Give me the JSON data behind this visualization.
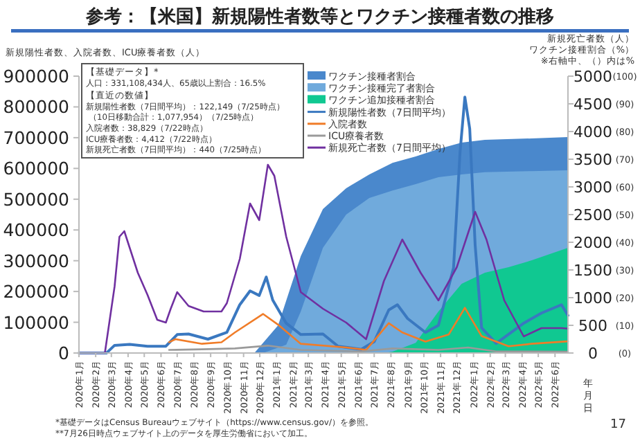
{
  "chart_data": {
    "type": "line",
    "title": "参考：【米国】新規陽性者数等とワクチン接種者数の推移",
    "ylabel": "新規陽性者数、入院者数、ICU療養者数（人）",
    "y2label": "新規死亡者数（人）",
    "y3label": "ワクチン接種割合（%）",
    "xlabel": "年月日",
    "xlim": [
      "2020-01-01",
      "2022-06-25"
    ],
    "xticks": [
      {
        "value": "2020-01-01",
        "label": "2020年1月"
      },
      {
        "value": "2020-02-01",
        "label": "2020年2月"
      },
      {
        "value": "2020-03-01",
        "label": "2020年3月"
      },
      {
        "value": "2020-04-01",
        "label": "2020年4月"
      },
      {
        "value": "2020-05-01",
        "label": "2020年5月"
      },
      {
        "value": "2020-06-01",
        "label": "2020年6月"
      },
      {
        "value": "2020-07-01",
        "label": "2020年7月"
      },
      {
        "value": "2020-08-01",
        "label": "2020年8月"
      },
      {
        "value": "2020-09-01",
        "label": "2020年9月"
      },
      {
        "value": "2020-10-01",
        "label": "2020年10月"
      },
      {
        "value": "2020-11-01",
        "label": "2020年11月"
      },
      {
        "value": "2020-12-01",
        "label": "2020年12月"
      },
      {
        "value": "2021-01-01",
        "label": "2021年1月"
      },
      {
        "value": "2021-02-01",
        "label": "2021年2月"
      },
      {
        "value": "2021-03-01",
        "label": "2021年3月"
      },
      {
        "value": "2021-04-01",
        "label": "2021年4月"
      },
      {
        "value": "2021-05-01",
        "label": "2021年5月"
      },
      {
        "value": "2021-06-01",
        "label": "2021年6月"
      },
      {
        "value": "2021-07-01",
        "label": "2021年7月"
      },
      {
        "value": "2021-08-01",
        "label": "2021年8月"
      },
      {
        "value": "2021-09-01",
        "label": "2021年9月"
      },
      {
        "value": "2021-10-01",
        "label": "2021年10月"
      },
      {
        "value": "2021-11-01",
        "label": "2021年11月"
      },
      {
        "value": "2021-12-01",
        "label": "2021年12月"
      },
      {
        "value": "2022-01-01",
        "label": "2022年1月"
      },
      {
        "value": "2022-02-01",
        "label": "2022年2月"
      },
      {
        "value": "2022-03-01",
        "label": "2022年3月"
      },
      {
        "value": "2022-04-01",
        "label": "2022年4月"
      },
      {
        "value": "2022-05-01",
        "label": "2022年5月"
      },
      {
        "value": "2022-06-01",
        "label": "2022年6月"
      }
    ],
    "ylim": [
      0,
      900000
    ],
    "yticks": [
      0,
      100000,
      200000,
      300000,
      400000,
      500000,
      600000,
      700000,
      800000,
      900000
    ],
    "y2lim": [
      0,
      5000
    ],
    "y2ticks": [
      0,
      500,
      1000,
      1500,
      2000,
      2500,
      3000,
      3500,
      4000,
      4500,
      5000
    ],
    "y3lim": [
      0,
      100
    ],
    "y3ticks": [
      {
        "value": 0,
        "label": "(0)"
      },
      {
        "value": 10,
        "label": "(10)"
      },
      {
        "value": 20,
        "label": "(20)"
      },
      {
        "value": 30,
        "label": "(30)"
      },
      {
        "value": 40,
        "label": "(40)"
      },
      {
        "value": 50,
        "label": "(50)"
      },
      {
        "value": 60,
        "label": "(60)"
      },
      {
        "value": 70,
        "label": "(70)"
      },
      {
        "value": 80,
        "label": "(80)"
      },
      {
        "value": 90,
        "label": "(90)"
      },
      {
        "value": 100,
        "label": "(100)"
      }
    ],
    "grid": false,
    "legend": "top",
    "marker": "none",
    "line_style": "solid",
    "series": [
      {
        "name": "ワクチン接種者割合",
        "type": "area",
        "axis": "y3",
        "color": "#4a88cc",
        "x": [
          "2020-11-21",
          "2021-01-04",
          "2021-02-15",
          "2021-03-28",
          "2021-05-10",
          "2021-06-22",
          "2021-08-04",
          "2021-09-16",
          "2021-10-28",
          "2021-12-10",
          "2022-01-22",
          "2022-04-19",
          "2022-06-25"
        ],
        "values": [
          0,
          10,
          35,
          52,
          59.5,
          64.5,
          68.7,
          71,
          73.7,
          76,
          77,
          77.5,
          78
        ]
      },
      {
        "name": "ワクチン接種完了者割合",
        "type": "area",
        "axis": "y3",
        "color": "#70aadc",
        "x": [
          "2020-12-07",
          "2021-01-19",
          "2021-02-15",
          "2021-03-28",
          "2021-05-10",
          "2021-06-22",
          "2021-08-04",
          "2021-09-16",
          "2021-10-28",
          "2021-12-10",
          "2022-01-22",
          "2022-04-19",
          "2022-06-25"
        ],
        "values": [
          0,
          3,
          15,
          38,
          50,
          56,
          58.7,
          61,
          63.5,
          64.5,
          65.3,
          65.7,
          66
        ]
      },
      {
        "name": "ワクチン追加接種者割合",
        "type": "area",
        "axis": "y3",
        "color": "#10c891",
        "x": [
          "2021-07-19",
          "2021-08-04",
          "2021-09-16",
          "2021-10-28",
          "2021-12-10",
          "2022-01-22",
          "2022-03-07",
          "2022-04-19",
          "2022-06-25"
        ],
        "values": [
          0,
          0.5,
          3.7,
          15,
          25,
          29,
          31,
          33.5,
          38
        ]
      },
      {
        "name": "新規陽性者数（7日間平均）",
        "color": "#3a78c0",
        "x": [
          "2020-01-01",
          "2020-02-21",
          "2020-03-07",
          "2020-04-04",
          "2020-05-07",
          "2020-06-10",
          "2020-07-01",
          "2020-07-22",
          "2020-08-27",
          "2020-10-01",
          "2020-10-25",
          "2020-11-13",
          "2020-11-30",
          "2020-12-13",
          "2020-12-25",
          "2021-01-19",
          "2021-02-15",
          "2021-03-28",
          "2021-04-25",
          "2021-06-07",
          "2021-07-01",
          "2021-07-28",
          "2021-08-13",
          "2021-09-01",
          "2021-10-04",
          "2021-10-28",
          "2021-11-25",
          "2021-12-07",
          "2021-12-16",
          "2021-12-25",
          "2022-01-04",
          "2022-01-16",
          "2022-02-12",
          "2022-04-04",
          "2022-05-07",
          "2022-06-13",
          "2022-06-25"
        ],
        "values": [
          0,
          0,
          25000,
          28000,
          22000,
          22000,
          60000,
          62000,
          45000,
          67000,
          157000,
          202000,
          187000,
          247000,
          172000,
          97000,
          60000,
          62000,
          22000,
          12000,
          37000,
          140000,
          157000,
          112000,
          67000,
          90000,
          277000,
          652000,
          832000,
          729000,
          352000,
          82000,
          31000,
          97000,
          130000,
          157000,
          122000
        ]
      },
      {
        "name": "入院者数",
        "color": "#f07c28",
        "x": [
          "2020-06-16",
          "2020-06-28",
          "2020-08-16",
          "2020-09-21",
          "2020-10-16",
          "2020-12-07",
          "2021-01-04",
          "2021-02-15",
          "2021-05-10",
          "2021-06-16",
          "2021-07-28",
          "2021-08-22",
          "2021-10-04",
          "2021-11-16",
          "2021-12-16",
          "2022-01-16",
          "2022-03-07",
          "2022-04-19",
          "2022-06-25"
        ],
        "values": [
          35000,
          45000,
          30000,
          35000,
          67000,
          127000,
          92000,
          30000,
          18000,
          10000,
          97000,
          67000,
          37000,
          60000,
          147000,
          55000,
          22000,
          30000,
          38000
        ]
      },
      {
        "name": "ICU療養者数",
        "color": "#9a9a9a",
        "x": [
          "2020-06-16",
          "2020-08-16",
          "2020-10-16",
          "2020-12-16",
          "2021-02-15",
          "2021-06-07",
          "2021-08-04",
          "2021-10-28",
          "2021-12-22",
          "2022-02-12",
          "2022-06-25"
        ],
        "values": [
          10000,
          12000,
          15000,
          24000,
          10000,
          5000,
          15000,
          10000,
          18000,
          5000,
          4400
        ]
      },
      {
        "name": "新規死亡者数（7日間平均）",
        "axis": "y2",
        "color": "#7030a0",
        "x": [
          "2020-01-01",
          "2020-02-18",
          "2020-03-07",
          "2020-03-16",
          "2020-03-25",
          "2020-04-04",
          "2020-04-19",
          "2020-05-07",
          "2020-05-25",
          "2020-06-10",
          "2020-06-19",
          "2020-07-01",
          "2020-07-22",
          "2020-08-19",
          "2020-09-21",
          "2020-10-01",
          "2020-10-25",
          "2020-11-13",
          "2020-11-30",
          "2020-12-16",
          "2020-12-28",
          "2021-01-19",
          "2021-02-15",
          "2021-03-28",
          "2021-05-10",
          "2021-06-16",
          "2021-07-19",
          "2021-08-22",
          "2021-09-25",
          "2021-10-28",
          "2021-12-01",
          "2022-01-04",
          "2022-01-25",
          "2022-02-27",
          "2022-04-04",
          "2022-05-07",
          "2022-06-13",
          "2022-06-25"
        ],
        "values": [
          0,
          0,
          1200,
          2100,
          2200,
          1900,
          1450,
          1050,
          600,
          550,
          800,
          1100,
          850,
          750,
          750,
          900,
          1700,
          2700,
          2400,
          3400,
          3200,
          2100,
          1100,
          800,
          550,
          250,
          1300,
          2050,
          1450,
          950,
          1550,
          2550,
          2050,
          950,
          300,
          450,
          450,
          440
        ]
      }
    ],
    "annotations": [
      "【基礎データ】*",
      "人口：331,108,434人、65歳以上割合：16.5%",
      "【直近の数値】",
      "新規陽性者数（7日間平均）：122,149（7/25時点）",
      "（10日移動合計：1,077,954）（7/25時点）",
      "入院者数：38,829（7/22時点）",
      "ICU療養者数：4,412（7/22時点）",
      "新規死亡者数（7日間平均）：440（7/25時点）",
      "*基礎データはCensus Bureauウェブサイト（https://www.census.gov/）を参照。",
      "**7月26日時点ウェブサイト上のデータを厚生労働省において加工。",
      "※右軸中、（）内は%",
      "17"
    ]
  }
}
